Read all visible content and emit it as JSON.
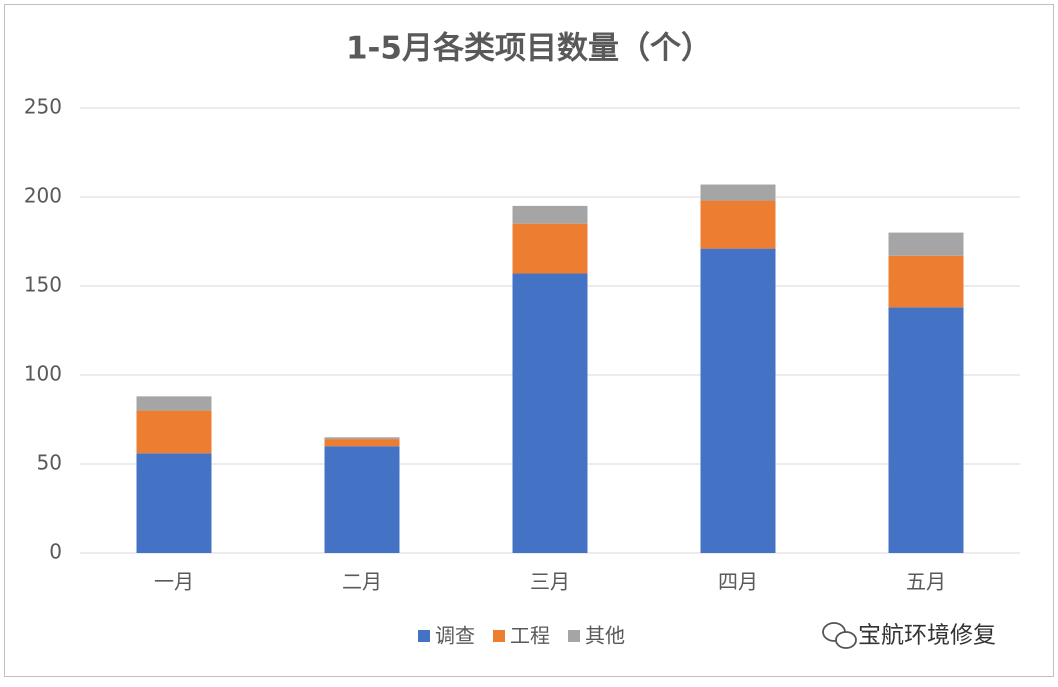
{
  "chart_data": {
    "type": "stacked_bar",
    "title": "1-5月各类项目数量（个）",
    "categories": [
      "一月",
      "二月",
      "三月",
      "四月",
      "五月"
    ],
    "series": [
      {
        "name": "调查",
        "color": "#4472c4",
        "values": [
          56,
          60,
          157,
          171,
          138
        ]
      },
      {
        "name": "工程",
        "color": "#ed7d31",
        "values": [
          24,
          4,
          28,
          27,
          29
        ]
      },
      {
        "name": "其他",
        "color": "#a5a5a5",
        "values": [
          8,
          1,
          10,
          9,
          13
        ]
      }
    ],
    "ylim": [
      0,
      250
    ],
    "yticks": [
      0,
      50,
      100,
      150,
      200,
      250
    ],
    "grid": true,
    "legend": "bottom"
  },
  "watermark": "宝航环境修复"
}
